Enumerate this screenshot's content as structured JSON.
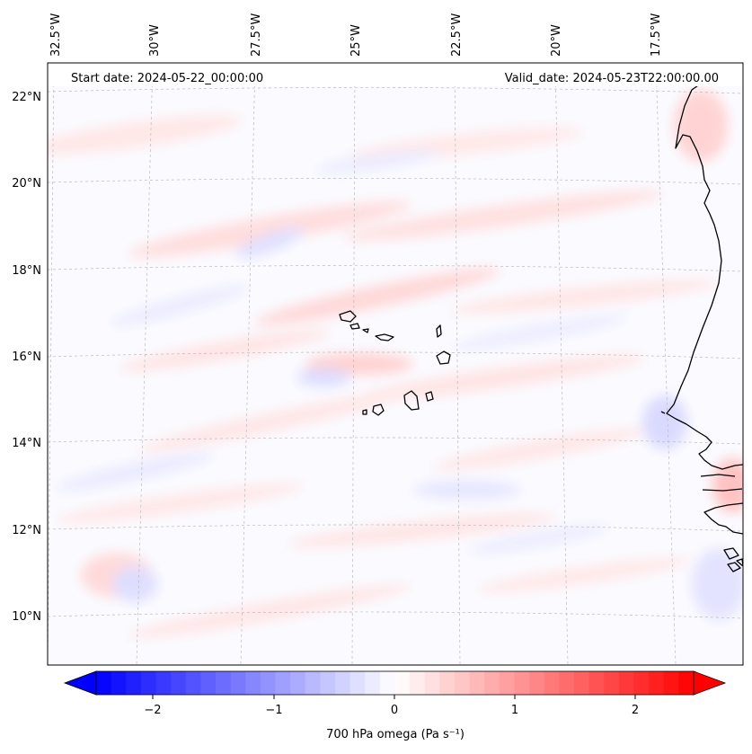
{
  "map": {
    "start_date": "Start date: 2024-05-22_00:00:00",
    "valid_date": "Valid_date: 2024-05-23T22:00:00.00",
    "lon_labels": [
      "32.5°W",
      "30°W",
      "27.5°W",
      "25°W",
      "22.5°W",
      "20°W",
      "17.5°W"
    ],
    "lat_labels": [
      "22°N",
      "20°N",
      "18°N",
      "16°N",
      "14°N",
      "12°N",
      "10°N"
    ],
    "field": "700 hPa omega",
    "region": "Cabo Verde and West African coast"
  },
  "colorbar": {
    "label": "700 hPa omega (Pa s⁻¹)",
    "ticks": [
      "−2",
      "−1",
      "0",
      "1",
      "2"
    ],
    "range": [
      -2.7,
      2.7
    ],
    "tick_values": [
      -2,
      -1,
      0,
      1,
      2
    ],
    "cmap": "bwr",
    "low_color": "#0000ff",
    "mid_color": "#ffffff",
    "high_color": "#ff0000"
  }
}
